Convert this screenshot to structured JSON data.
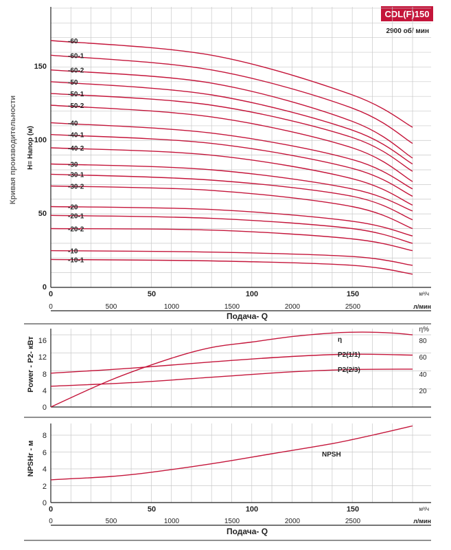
{
  "badge": "CDL(F)150",
  "speed": "2900 об/ мин",
  "side_title": "Кривая производительности",
  "main_panel": {
    "ylabel": "H= Напор (м)",
    "yticks": [
      "0",
      "50",
      "100",
      "150"
    ],
    "top_ticks": [
      "0",
      "50",
      "100",
      "150"
    ],
    "bottom_ticks": [
      "0",
      "500",
      "1000",
      "1500",
      "2000",
      "2500"
    ],
    "unit_m3": "м³/ч",
    "unit_lmin": "л/мин",
    "xlabel": "Подача- Q"
  },
  "power_panel": {
    "ylabel": "Power - P2- кВт",
    "yticks": [
      "0",
      "4",
      "8",
      "12",
      "16"
    ],
    "eta_unit": "η%",
    "eta_ticks": [
      "20",
      "40",
      "60",
      "80"
    ],
    "labels": {
      "eta": "η",
      "p2_full": "P2(1/1)",
      "p2_23": "P2(2/3)"
    }
  },
  "npsh_panel": {
    "ylabel": "NPSHr - м",
    "yticks": [
      "0",
      "2",
      "4",
      "6",
      "8"
    ],
    "curve_label": "NPSH",
    "top_ticks": [
      "0",
      "50",
      "100",
      "150"
    ],
    "bottom_ticks": [
      "0",
      "500",
      "1000",
      "1500",
      "2000",
      "2500"
    ],
    "unit_m3": "м³/ч",
    "unit_lmin": "л/мин",
    "xlabel": "Подача- Q"
  },
  "colors": {
    "curve": "#c4153a",
    "badge": "#c4153a",
    "axis": "#222222",
    "grid": "#c8c8c8",
    "text": "#222222",
    "side_title": "#666666"
  },
  "chart_data": {
    "type": "line",
    "x_units": "м³/ч",
    "xlim": [
      0,
      180
    ],
    "head_curves": {
      "ylim": [
        0,
        175
      ],
      "x": [
        0,
        80,
        150,
        180
      ],
      "series": [
        {
          "name": "-60",
          "values": [
            168,
            158,
            131,
            109
          ]
        },
        {
          "name": "-60-1",
          "values": [
            158,
            148,
            122,
            98
          ]
        },
        {
          "name": "-60-2",
          "values": [
            148,
            139,
            113,
            88
          ]
        },
        {
          "name": "-50",
          "values": [
            140,
            131,
            107,
            84
          ]
        },
        {
          "name": "-50-1",
          "values": [
            132,
            124,
            102,
            79
          ]
        },
        {
          "name": "-50-2",
          "values": [
            124,
            116,
            95,
            72
          ]
        },
        {
          "name": "-40",
          "values": [
            112,
            105,
            87,
            67
          ]
        },
        {
          "name": "-40-1",
          "values": [
            104,
            98,
            81,
            62
          ]
        },
        {
          "name": "-40-2",
          "values": [
            95,
            90,
            74,
            56
          ]
        },
        {
          "name": "-30",
          "values": [
            84,
            80,
            67,
            52
          ]
        },
        {
          "name": "-30-1",
          "values": [
            77,
            73,
            62,
            46
          ]
        },
        {
          "name": "-30-2",
          "values": [
            69,
            66,
            55,
            40
          ]
        },
        {
          "name": "-20",
          "values": [
            55,
            53,
            45,
            35
          ]
        },
        {
          "name": "-20-1",
          "values": [
            49,
            47,
            40,
            30
          ]
        },
        {
          "name": "-20-2",
          "values": [
            40,
            39,
            33,
            25
          ]
        },
        {
          "name": "-10",
          "values": [
            25,
            24,
            21,
            15
          ]
        },
        {
          "name": "-10-1",
          "values": [
            19,
            18,
            15,
            9
          ]
        }
      ]
    },
    "power": {
      "ylim": [
        0,
        18
      ],
      "eta_ylim": [
        0,
        90
      ],
      "x": [
        0,
        40,
        80,
        120,
        150,
        180
      ],
      "series": [
        {
          "name": "P2(1/1)",
          "values": [
            7.5,
            8.6,
            10.0,
            11.2,
            11.7,
            11.5
          ]
        },
        {
          "name": "P2(2/3)",
          "values": [
            4.6,
            5.4,
            6.6,
            7.8,
            8.3,
            8.4
          ]
        }
      ],
      "efficiency": {
        "name": "η",
        "x": [
          0,
          30,
          60,
          80,
          100,
          120,
          140,
          155,
          170,
          180
        ],
        "values": [
          0,
          30,
          54,
          66,
          72,
          78,
          82,
          83,
          82,
          80
        ]
      }
    },
    "npsh": {
      "ylim": [
        0,
        10
      ],
      "x": [
        0,
        30,
        50,
        80,
        110,
        140,
        160,
        180
      ],
      "series": [
        {
          "name": "NPSH",
          "values": [
            2.7,
            3.1,
            3.6,
            4.6,
            5.8,
            7.0,
            8.0,
            9.1
          ]
        }
      ]
    }
  }
}
